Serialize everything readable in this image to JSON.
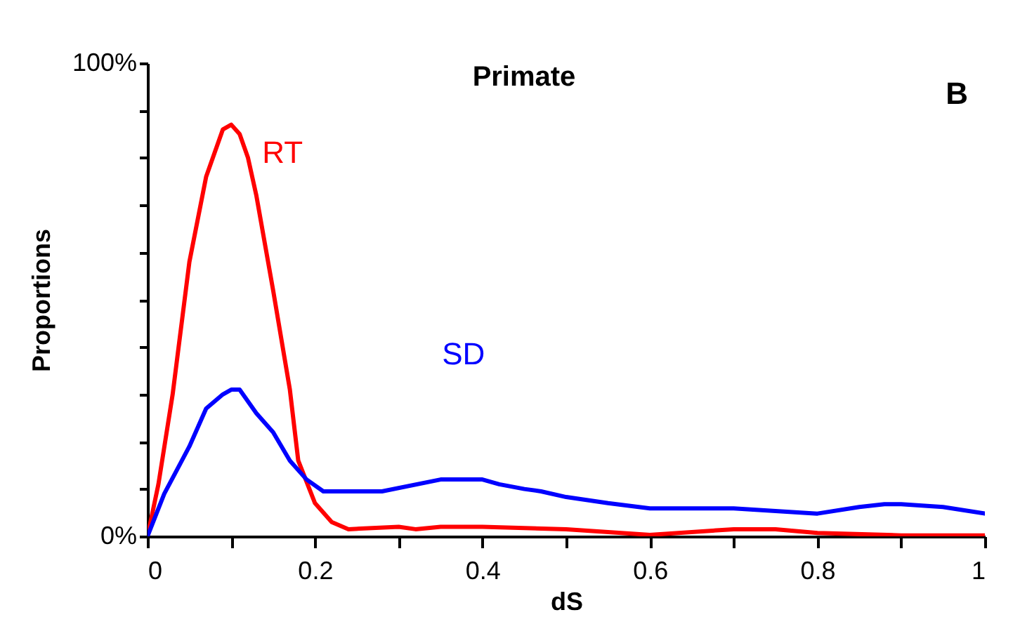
{
  "chart_data": {
    "type": "line",
    "title": "Primate",
    "xlabel": "dS",
    "ylabel": "Proportions",
    "annotations": [
      "B"
    ],
    "xlim": [
      0,
      1
    ],
    "ylim": [
      0,
      100
    ],
    "xticks": [
      {
        "value": 0,
        "label": "0"
      },
      {
        "value": 0.1,
        "label": null
      },
      {
        "value": 0.2,
        "label": "0.2"
      },
      {
        "value": 0.3,
        "label": null
      },
      {
        "value": 0.4,
        "label": "0.4"
      },
      {
        "value": 0.5,
        "label": null
      },
      {
        "value": 0.6,
        "label": "0.6"
      },
      {
        "value": 0.7,
        "label": null
      },
      {
        "value": 0.8,
        "label": "0.8"
      },
      {
        "value": 0.9,
        "label": null
      },
      {
        "value": 1,
        "label": "1"
      }
    ],
    "yticks": [
      {
        "value": 0,
        "label": "0%"
      },
      {
        "value": 10,
        "label": null
      },
      {
        "value": 20,
        "label": null
      },
      {
        "value": 30,
        "label": null
      },
      {
        "value": 40,
        "label": null
      },
      {
        "value": 50,
        "label": null
      },
      {
        "value": 60,
        "label": null
      },
      {
        "value": 70,
        "label": null
      },
      {
        "value": 80,
        "label": null
      },
      {
        "value": 90,
        "label": null
      },
      {
        "value": 100,
        "label": "100%"
      }
    ],
    "grid": false,
    "legend": false,
    "marker": "none",
    "line_style": "solid",
    "series": [
      {
        "name": "RT",
        "color": "#ff0000",
        "x": [
          0,
          0.013,
          0.03,
          0.05,
          0.07,
          0.09,
          0.1,
          0.11,
          0.12,
          0.13,
          0.15,
          0.17,
          0.18,
          0.2,
          0.22,
          0.24,
          0.3,
          0.32,
          0.35,
          0.4,
          0.5,
          0.6,
          0.7,
          0.75,
          0.8,
          0.9,
          1
        ],
        "values": [
          0,
          11,
          30,
          58,
          76,
          86,
          87,
          85,
          80,
          72,
          52,
          31,
          16,
          7,
          3,
          1.5,
          2,
          1.5,
          2,
          2,
          1.5,
          0.3,
          1.5,
          1.5,
          0.7,
          0.2,
          0.2
        ]
      },
      {
        "name": "SD",
        "color": "#0000ff",
        "x": [
          0,
          0.02,
          0.05,
          0.07,
          0.09,
          0.1,
          0.11,
          0.13,
          0.15,
          0.17,
          0.19,
          0.21,
          0.28,
          0.35,
          0.38,
          0.4,
          0.42,
          0.45,
          0.47,
          0.5,
          0.55,
          0.6,
          0.7,
          0.8,
          0.85,
          0.88,
          0.9,
          0.95,
          1
        ],
        "values": [
          0,
          9,
          19,
          27,
          30,
          31,
          31,
          26,
          22,
          16,
          12,
          9.5,
          9.5,
          12,
          12,
          12,
          11,
          10,
          9.5,
          8.3,
          7,
          5.9,
          5.9,
          4.8,
          6.2,
          6.8,
          6.8,
          6.2,
          4.8
        ]
      }
    ]
  }
}
